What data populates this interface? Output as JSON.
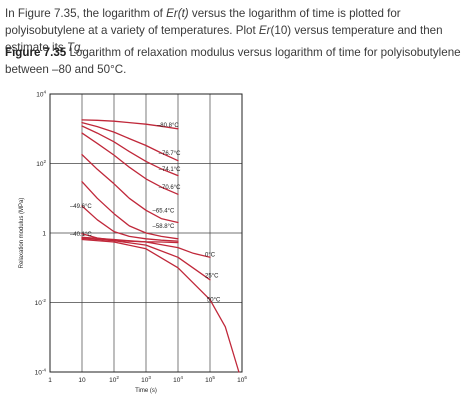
{
  "text": {
    "intro_a": "In Figure 7.35, the logarithm of ",
    "intro_b": "Er(t)",
    "intro_c": " versus the logarithm of time is plotted for polyisobutylene at a variety of temperatures. Plot ",
    "intro_d": "Er",
    "intro_e": "(10) versus temperature and then estimate its ",
    "intro_f": "Tg",
    "intro_g": ".",
    "fig_label": "Figure 7.35",
    "fig_caption": " Logarithm of relaxation modulus versus logarithm of time for polyisobutylene between –80 and 50°C."
  },
  "colors": {
    "curve": "#c0283a",
    "grid": "#444444",
    "axis": "#222222"
  },
  "chart_data": {
    "type": "line",
    "title": "",
    "xlabel": "Time (s)",
    "ylabel": "Relaxation modulus (MPa)",
    "x_scale": "log",
    "y_scale": "log",
    "xlim": [
      1,
      1000000
    ],
    "ylim": [
      0.0001,
      10000
    ],
    "grid": true,
    "x_ticks": [
      {
        "value": 1,
        "base": "1",
        "exp": ""
      },
      {
        "value": 10,
        "base": "10",
        "exp": ""
      },
      {
        "value": 100,
        "base": "10",
        "exp": "2"
      },
      {
        "value": 1000,
        "base": "10",
        "exp": "3"
      },
      {
        "value": 10000,
        "base": "10",
        "exp": "4"
      },
      {
        "value": 100000,
        "base": "10",
        "exp": "5"
      },
      {
        "value": 1000000,
        "base": "10",
        "exp": "6"
      }
    ],
    "y_ticks": [
      {
        "value": 10000,
        "base": "10",
        "exp": "4"
      },
      {
        "value": 100,
        "base": "10",
        "exp": "2"
      },
      {
        "value": 1,
        "base": "1",
        "exp": ""
      },
      {
        "value": 0.01,
        "base": "10",
        "exp": "-2"
      },
      {
        "value": 0.0001,
        "base": "10",
        "exp": "-4"
      }
    ],
    "series": [
      {
        "name": "–80.8°C",
        "x": [
          10,
          30,
          100,
          300,
          1000,
          3000,
          10000
        ],
        "y": [
          1800,
          1750,
          1650,
          1500,
          1350,
          1180,
          1000
        ]
      },
      {
        "name": "–76.7°C",
        "x": [
          10,
          30,
          100,
          300,
          1000,
          3000,
          10000
        ],
        "y": [
          1500,
          1150,
          800,
          520,
          330,
          200,
          120
        ]
      },
      {
        "name": "–74.1°C",
        "x": [
          10,
          30,
          100,
          300,
          1000,
          3000,
          10000
        ],
        "y": [
          1200,
          750,
          420,
          220,
          115,
          70,
          45
        ]
      },
      {
        "name": "–70.6°C",
        "x": [
          10,
          30,
          100,
          300,
          1000,
          3000,
          10000
        ],
        "y": [
          750,
          380,
          175,
          78,
          36,
          21,
          13
        ]
      },
      {
        "name": "–65.4°C",
        "x": [
          10,
          30,
          100,
          300,
          1000,
          3000,
          10000
        ],
        "y": [
          180,
          68,
          26,
          10,
          4.5,
          2.6,
          2.0
        ]
      },
      {
        "name": "–58.8°C",
        "x": [
          10,
          30,
          100,
          300,
          1000,
          3000,
          10000
        ],
        "y": [
          30,
          10,
          3.6,
          1.6,
          1.0,
          0.8,
          0.68
        ]
      },
      {
        "name": "–49.6°C",
        "x": [
          10,
          30,
          100,
          300,
          1000,
          3000,
          10000
        ],
        "y": [
          6,
          2.4,
          1.1,
          0.8,
          0.68,
          0.62,
          0.58
        ]
      },
      {
        "name": "–40.1°C",
        "x": [
          10,
          30,
          100,
          300,
          1000,
          3000,
          10000
        ],
        "y": [
          0.95,
          0.72,
          0.62,
          0.58,
          0.56,
          0.55,
          0.53
        ]
      },
      {
        "name": "0°C",
        "x": [
          10,
          100,
          1000,
          10000,
          30000,
          100000
        ],
        "y": [
          0.75,
          0.65,
          0.55,
          0.38,
          0.26,
          0.2
        ]
      },
      {
        "name": "25°C",
        "x": [
          10,
          100,
          1000,
          10000,
          100000
        ],
        "y": [
          0.7,
          0.6,
          0.45,
          0.2,
          0.045
        ]
      },
      {
        "name": "50°C",
        "x": [
          10,
          100,
          1000,
          10000,
          100000,
          300000,
          800000
        ],
        "y": [
          0.65,
          0.55,
          0.35,
          0.1,
          0.012,
          0.002,
          0.0001
        ]
      }
    ]
  }
}
